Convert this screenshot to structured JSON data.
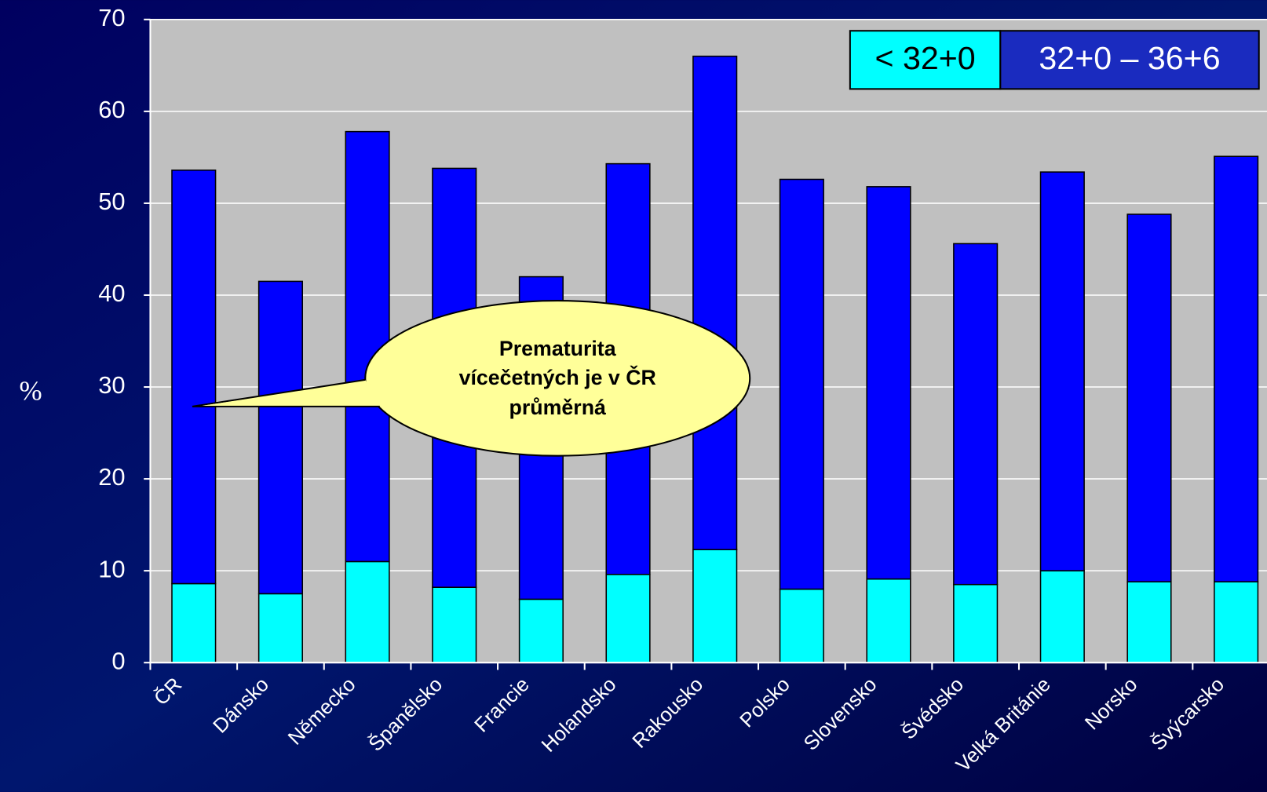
{
  "chart_data": {
    "type": "stacked_bar",
    "y_label": "%",
    "categories": [
      "ČR",
      "Dánsko",
      "Německo",
      "Španělsko",
      "Francie",
      "Holandsko",
      "Rakousko",
      "Polsko",
      "Slovensko",
      "Švédsko",
      "Velká Británie",
      "Norsko",
      "Švýcarsko"
    ],
    "series": [
      {
        "name": "< 32+0",
        "color": "#00ffff",
        "values": [
          8.6,
          7.5,
          11.0,
          8.2,
          6.9,
          9.6,
          12.3,
          8.0,
          9.1,
          8.5,
          10.0,
          8.8,
          8.8
        ]
      },
      {
        "name": "32+0 – 36+6",
        "color": "#0000ff",
        "values": [
          45.0,
          34.0,
          46.8,
          45.6,
          35.1,
          44.7,
          53.7,
          44.6,
          42.7,
          37.1,
          43.4,
          40.0,
          46.3
        ]
      }
    ],
    "ylim": [
      0,
      70
    ],
    "yticks": [
      0,
      10,
      20,
      30,
      40,
      50,
      60,
      70
    ],
    "grid": true,
    "annotation": [
      "Prematurita",
      "vícečetných je v ČR",
      "průměrná"
    ]
  }
}
